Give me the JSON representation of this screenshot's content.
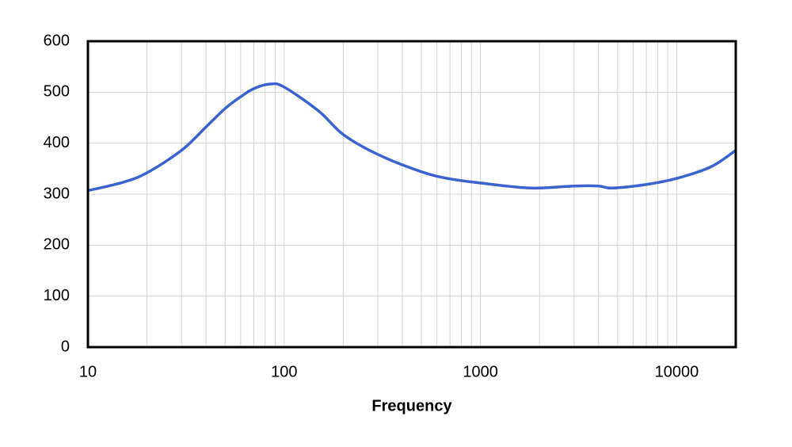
{
  "chart_data": {
    "type": "line",
    "x_label": "Frequency",
    "x": [
      10,
      15,
      20,
      30,
      40,
      50,
      60,
      70,
      85,
      100,
      150,
      200,
      300,
      500,
      700,
      1000,
      1800,
      3000,
      4000,
      4700,
      7000,
      10000,
      15000,
      20000
    ],
    "series": [
      {
        "color": "#3a63d0",
        "values": [
          307,
          323,
          342,
          386,
          432,
          468,
          491,
          507,
          516,
          510,
          463,
          417,
          378,
          344,
          330,
          322,
          312,
          316,
          316,
          312,
          319,
          331,
          354,
          386
        ]
      }
    ],
    "xscale": "log",
    "xlim": [
      10,
      20000
    ],
    "xticks": [
      10,
      100,
      1000,
      10000
    ],
    "ylim": [
      0,
      600
    ],
    "yticks": [
      0,
      100,
      200,
      300,
      400,
      500,
      600
    ],
    "grid": true,
    "minor_grid": true
  }
}
